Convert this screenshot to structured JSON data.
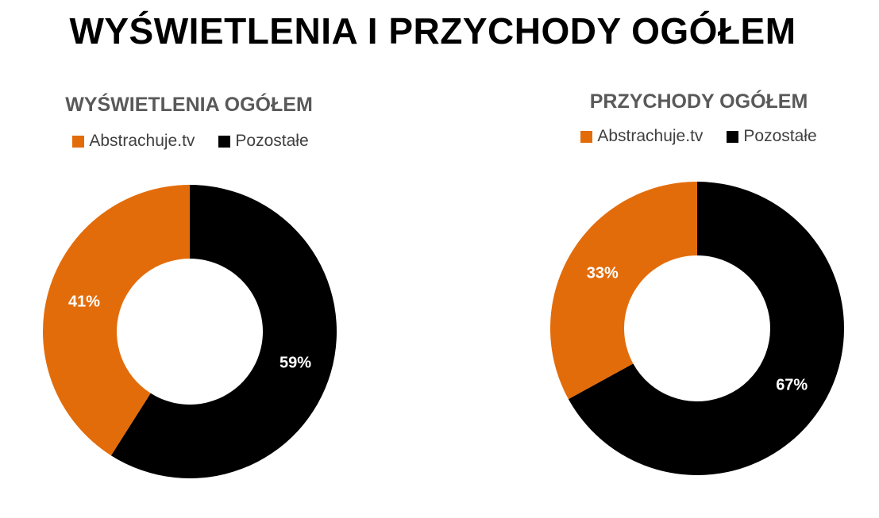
{
  "title": "WYŚWIETLENIA I PRZYCHODY OGÓŁEM",
  "colors": {
    "abstrachuje": "#E36C0A",
    "pozostale": "#000000"
  },
  "chart_data": [
    {
      "type": "pie",
      "title": "WYŚWIETLENIA OGÓŁEM",
      "legend_position": "top",
      "categories": [
        "Abstrachuje.tv",
        "Pozostałe"
      ],
      "values": [
        41,
        59
      ],
      "labels": [
        "41%",
        "59%"
      ]
    },
    {
      "type": "pie",
      "title": "PRZYCHODY OGÓŁEM",
      "legend_position": "top",
      "categories": [
        "Abstrachuje.tv",
        "Pozostałe"
      ],
      "values": [
        33,
        67
      ],
      "labels": [
        "33%",
        "67%"
      ]
    }
  ]
}
